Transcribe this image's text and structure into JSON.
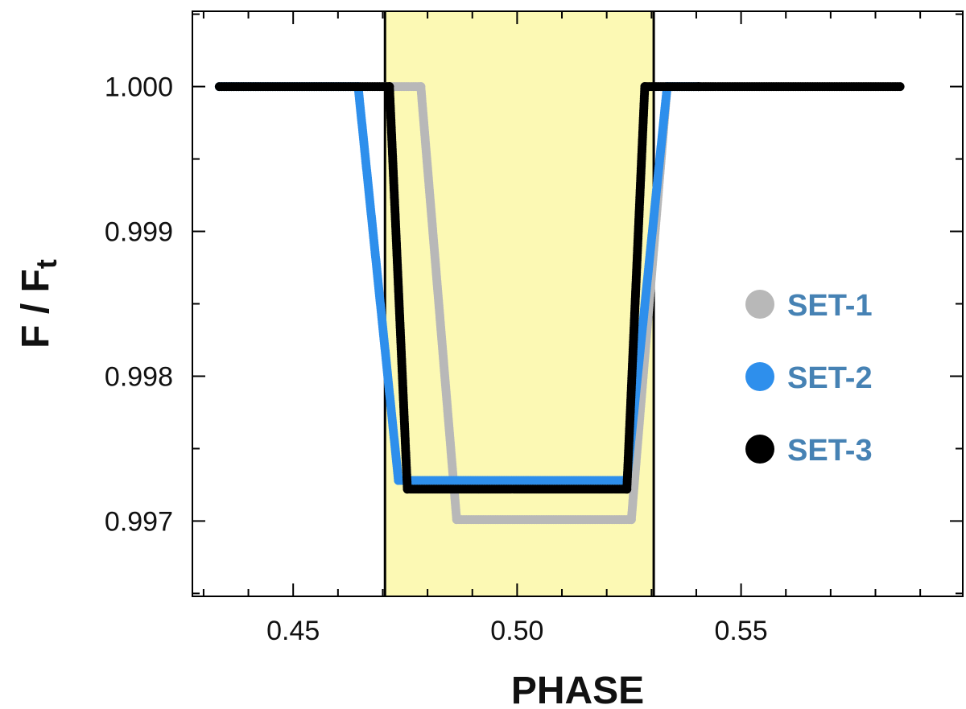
{
  "chart_data": {
    "type": "scatter",
    "title": "",
    "xlabel": "PHASE",
    "ylabel_main": "F / F",
    "ylabel_sub": "t",
    "xlim": [
      0.4275,
      0.5995
    ],
    "ylim": [
      0.99648,
      1.00052
    ],
    "xticks": [
      0.45,
      0.5,
      0.55
    ],
    "xtick_labels": [
      "0.45",
      "0.50",
      "0.55"
    ],
    "yticks": [
      0.997,
      0.998,
      0.999,
      1.0
    ],
    "ytick_labels": [
      "0.997",
      "0.998",
      "0.999",
      "1.000"
    ],
    "grid": false,
    "legend_position": "right",
    "highlight_band": {
      "x_start": 0.4705,
      "x_end": 0.5305,
      "color": "#fcf9b4"
    },
    "series": [
      {
        "name": "SET-1",
        "color": "#b8b8b8",
        "points": [
          [
            0.4705,
            1.0
          ],
          [
            0.4785,
            1.0
          ],
          [
            0.4865,
            0.99701
          ],
          [
            0.5255,
            0.99701
          ],
          [
            0.5335,
            1.0
          ]
        ]
      },
      {
        "name": "SET-2",
        "color": "#2e8fec",
        "points": [
          [
            0.4335,
            1.0
          ],
          [
            0.4645,
            1.0
          ],
          [
            0.4735,
            0.99728
          ],
          [
            0.5245,
            0.99728
          ],
          [
            0.5335,
            1.0
          ],
          [
            0.5405,
            1.0
          ]
        ]
      },
      {
        "name": "SET-3",
        "color": "#000000",
        "points": [
          [
            0.4335,
            1.0
          ],
          [
            0.4715,
            1.0
          ],
          [
            0.4755,
            0.99722
          ],
          [
            0.5245,
            0.99722
          ],
          [
            0.5285,
            1.0
          ],
          [
            0.5305,
            1.0
          ],
          [
            0.5405,
            1.0
          ],
          [
            0.5855,
            1.0
          ]
        ]
      }
    ]
  }
}
